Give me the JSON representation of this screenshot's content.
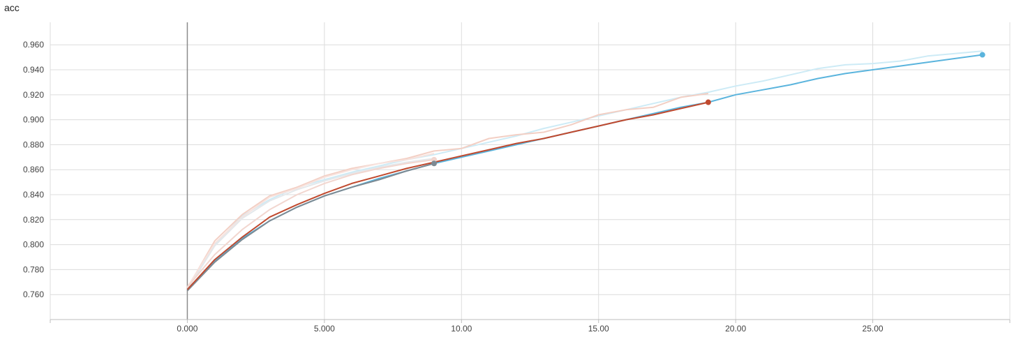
{
  "chart_data": {
    "type": "line",
    "title": "acc",
    "xlabel": "",
    "ylabel": "",
    "xlim": [
      -5,
      30
    ],
    "ylim": [
      0.74,
      0.978
    ],
    "x_ticks": [
      0,
      5,
      10,
      15,
      20,
      25
    ],
    "x_tick_labels": [
      "0.000",
      "5.000",
      "10.00",
      "15.00",
      "20.00",
      "25.00"
    ],
    "y_ticks": [
      0.76,
      0.78,
      0.8,
      0.82,
      0.84,
      0.86,
      0.88,
      0.9,
      0.92,
      0.94,
      0.96
    ],
    "y_tick_labels": [
      "0.760",
      "0.780",
      "0.800",
      "0.820",
      "0.840",
      "0.860",
      "0.880",
      "0.900",
      "0.920",
      "0.940",
      "0.960"
    ],
    "grid": true,
    "series": [
      {
        "color": "#5ab4dd",
        "raw_color": "#cdebf6",
        "end_marker": true,
        "x": [
          0,
          1,
          2,
          3,
          4,
          5,
          6,
          7,
          8,
          9,
          10,
          11,
          12,
          13,
          14,
          15,
          16,
          17,
          18,
          19,
          20,
          21,
          22,
          23,
          24,
          25,
          26,
          27,
          28,
          29
        ],
        "raw": [
          0.765,
          0.8,
          0.823,
          0.836,
          0.846,
          0.852,
          0.858,
          0.863,
          0.868,
          0.872,
          0.877,
          0.882,
          0.887,
          0.893,
          0.898,
          0.903,
          0.908,
          0.913,
          0.918,
          0.922,
          0.927,
          0.931,
          0.936,
          0.941,
          0.944,
          0.945,
          0.947,
          0.951,
          0.953,
          0.955
        ],
        "smoothed": [
          0.764,
          0.787,
          0.805,
          0.819,
          0.83,
          0.839,
          0.846,
          0.853,
          0.859,
          0.865,
          0.87,
          0.875,
          0.88,
          0.885,
          0.89,
          0.895,
          0.9,
          0.905,
          0.91,
          0.914,
          0.92,
          0.924,
          0.928,
          0.933,
          0.937,
          0.94,
          0.943,
          0.946,
          0.949,
          0.952
        ]
      },
      {
        "color": "#c04a2f",
        "raw_color": "#f3cfc4",
        "end_marker": true,
        "x": [
          0,
          1,
          2,
          3,
          4,
          5,
          6,
          7,
          8,
          9,
          10,
          11,
          12,
          13,
          14,
          15,
          16,
          17,
          18,
          19
        ],
        "raw": [
          0.765,
          0.803,
          0.824,
          0.839,
          0.846,
          0.855,
          0.861,
          0.865,
          0.869,
          0.875,
          0.877,
          0.885,
          0.888,
          0.89,
          0.896,
          0.904,
          0.908,
          0.91,
          0.918,
          0.921
        ],
        "smoothed": [
          0.764,
          0.788,
          0.806,
          0.822,
          0.832,
          0.841,
          0.849,
          0.855,
          0.861,
          0.866,
          0.871,
          0.876,
          0.881,
          0.885,
          0.89,
          0.895,
          0.9,
          0.904,
          0.909,
          0.914
        ]
      },
      {
        "color": "#f2d6cf",
        "raw_color": "#f7e3de",
        "end_marker": true,
        "x": [
          0,
          1,
          2,
          3,
          4,
          5,
          6,
          7,
          8,
          9
        ],
        "raw": [
          0.766,
          0.801,
          0.822,
          0.838,
          0.845,
          0.854,
          0.86,
          0.865,
          0.868,
          0.873
        ],
        "smoothed": [
          0.766,
          0.792,
          0.812,
          0.828,
          0.84,
          0.849,
          0.856,
          0.861,
          0.865,
          0.868
        ]
      },
      {
        "color": "#7d8a93",
        "raw_color": "#e4e8eb",
        "end_marker": true,
        "x": [
          0,
          1,
          2,
          3,
          4,
          5,
          6,
          7,
          8,
          9
        ],
        "raw": [
          0.764,
          0.799,
          0.821,
          0.835,
          0.844,
          0.851,
          0.857,
          0.862,
          0.866,
          0.869
        ],
        "smoothed": [
          0.763,
          0.786,
          0.804,
          0.819,
          0.83,
          0.839,
          0.846,
          0.852,
          0.859,
          0.865
        ]
      }
    ]
  }
}
